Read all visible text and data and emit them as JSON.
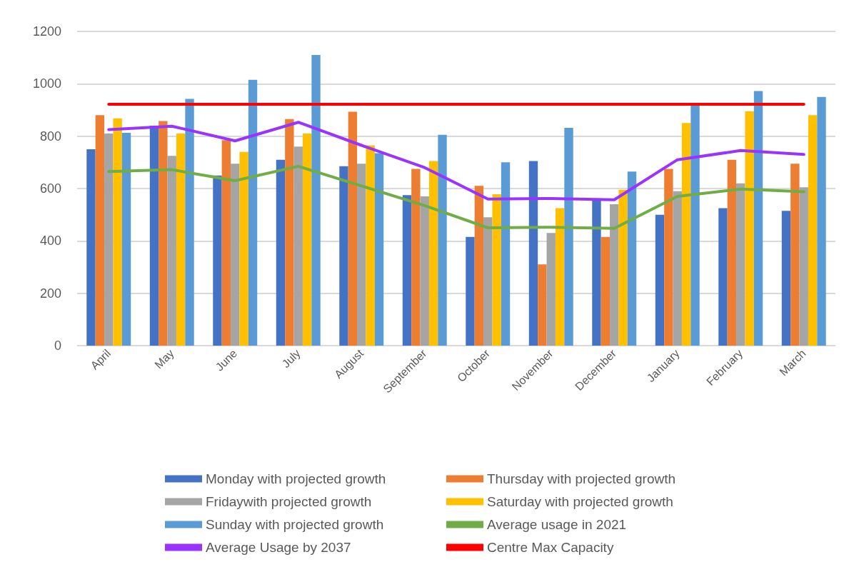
{
  "chart_data": {
    "type": "bar",
    "categories": [
      "April",
      "May",
      "June",
      "July",
      "August",
      "September",
      "October",
      "November",
      "December",
      "January",
      "February",
      "March"
    ],
    "series": [
      {
        "name": "Monday with projected growth",
        "color": "#4472c4",
        "values": [
          750,
          840,
          650,
          710,
          685,
          575,
          415,
          705,
          555,
          500,
          525,
          515
        ]
      },
      {
        "name": "Thursday with projected growth",
        "color": "#ed7d31",
        "values": [
          880,
          858,
          785,
          865,
          893,
          675,
          610,
          310,
          415,
          675,
          710,
          695
        ]
      },
      {
        "name": "Fridaywith projected growth",
        "color": "#a5a5a5",
        "values": [
          810,
          725,
          695,
          760,
          695,
          570,
          490,
          430,
          540,
          590,
          620,
          605
        ]
      },
      {
        "name": "Saturday with projected growth",
        "color": "#ffc000",
        "values": [
          868,
          810,
          740,
          810,
          765,
          705,
          578,
          525,
          595,
          850,
          895,
          880
        ]
      },
      {
        "name": "Sunday with projected growth",
        "color": "#5b9bd5",
        "values": [
          813,
          942,
          1015,
          1110,
          735,
          805,
          700,
          832,
          665,
          920,
          972,
          950
        ]
      },
      {
        "name": "Average usage in 2021",
        "type": "line",
        "color": "#70ad47",
        "values": [
          665,
          672,
          630,
          685,
          610,
          535,
          450,
          452,
          448,
          570,
          598,
          588
        ]
      },
      {
        "name": "Average Usage by 2037",
        "type": "line",
        "color": "#9933ff",
        "values": [
          825,
          838,
          782,
          853,
          765,
          680,
          560,
          562,
          557,
          710,
          745,
          730
        ]
      },
      {
        "name": "Centre Max Capacity",
        "type": "line",
        "color": "#ff0000",
        "values": [
          922,
          922,
          922,
          922,
          922,
          922,
          922,
          922,
          922,
          922,
          922,
          922
        ]
      }
    ],
    "ylim": [
      0,
      1200
    ],
    "yticks": [
      0,
      200,
      400,
      600,
      800,
      1000,
      1200
    ],
    "grid": "y",
    "legend": "bottom",
    "marker": "none",
    "line_style": "solid"
  }
}
